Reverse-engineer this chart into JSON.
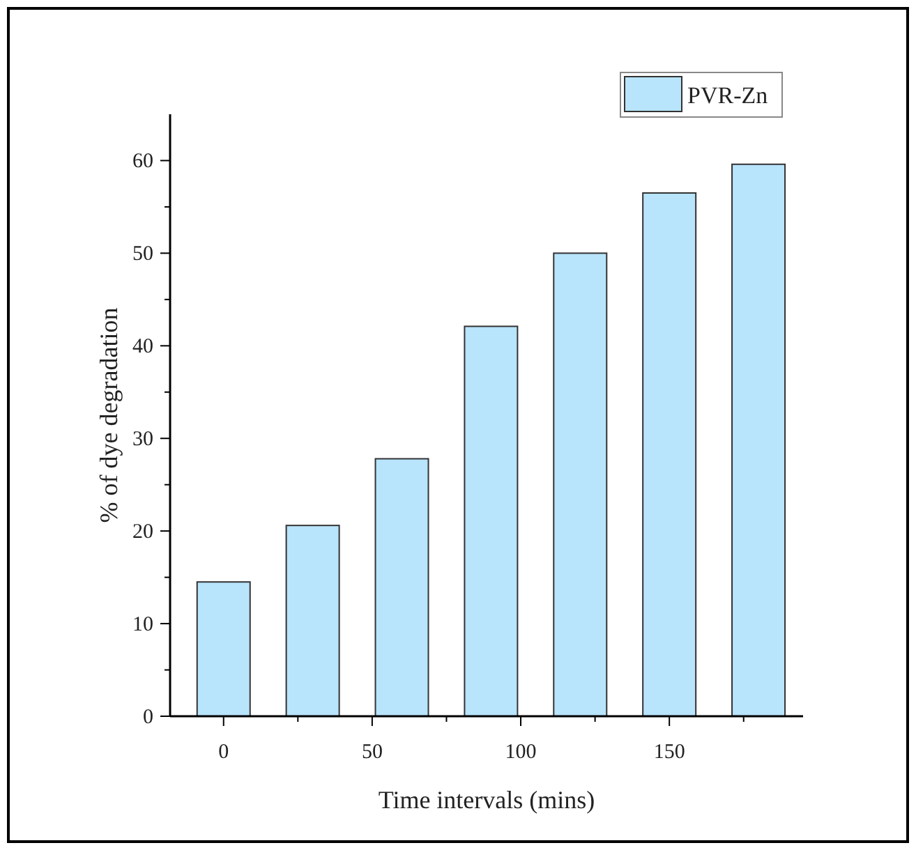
{
  "chart_data": {
    "type": "bar",
    "x": [
      0,
      30,
      60,
      90,
      120,
      150,
      180
    ],
    "series": [
      {
        "name": "PVR-Zn",
        "color": "#b8e4fc",
        "values": [
          14.5,
          20.6,
          27.8,
          42.1,
          50.0,
          56.5,
          59.6
        ]
      }
    ],
    "xlabel": "Time intervals (mins)",
    "ylabel": "% of dye degradation",
    "xlim": [
      -18,
      195
    ],
    "xticks": [
      0,
      {
        "value": 25,
        "label": null
      },
      50,
      {
        "value": 75,
        "label": null
      },
      100,
      {
        "value": 125,
        "label": null
      },
      150,
      {
        "value": 175,
        "label": null
      }
    ],
    "ylim": [
      0,
      65
    ],
    "yticks": [
      0,
      {
        "value": 5,
        "label": null
      },
      10,
      {
        "value": 15,
        "label": null
      },
      20,
      {
        "value": 25,
        "label": null
      },
      30,
      {
        "value": 35,
        "label": null
      },
      40,
      {
        "value": 45,
        "label": null
      },
      50,
      {
        "value": 55,
        "label": null
      },
      60
    ],
    "legend": "top right",
    "grid": false
  }
}
